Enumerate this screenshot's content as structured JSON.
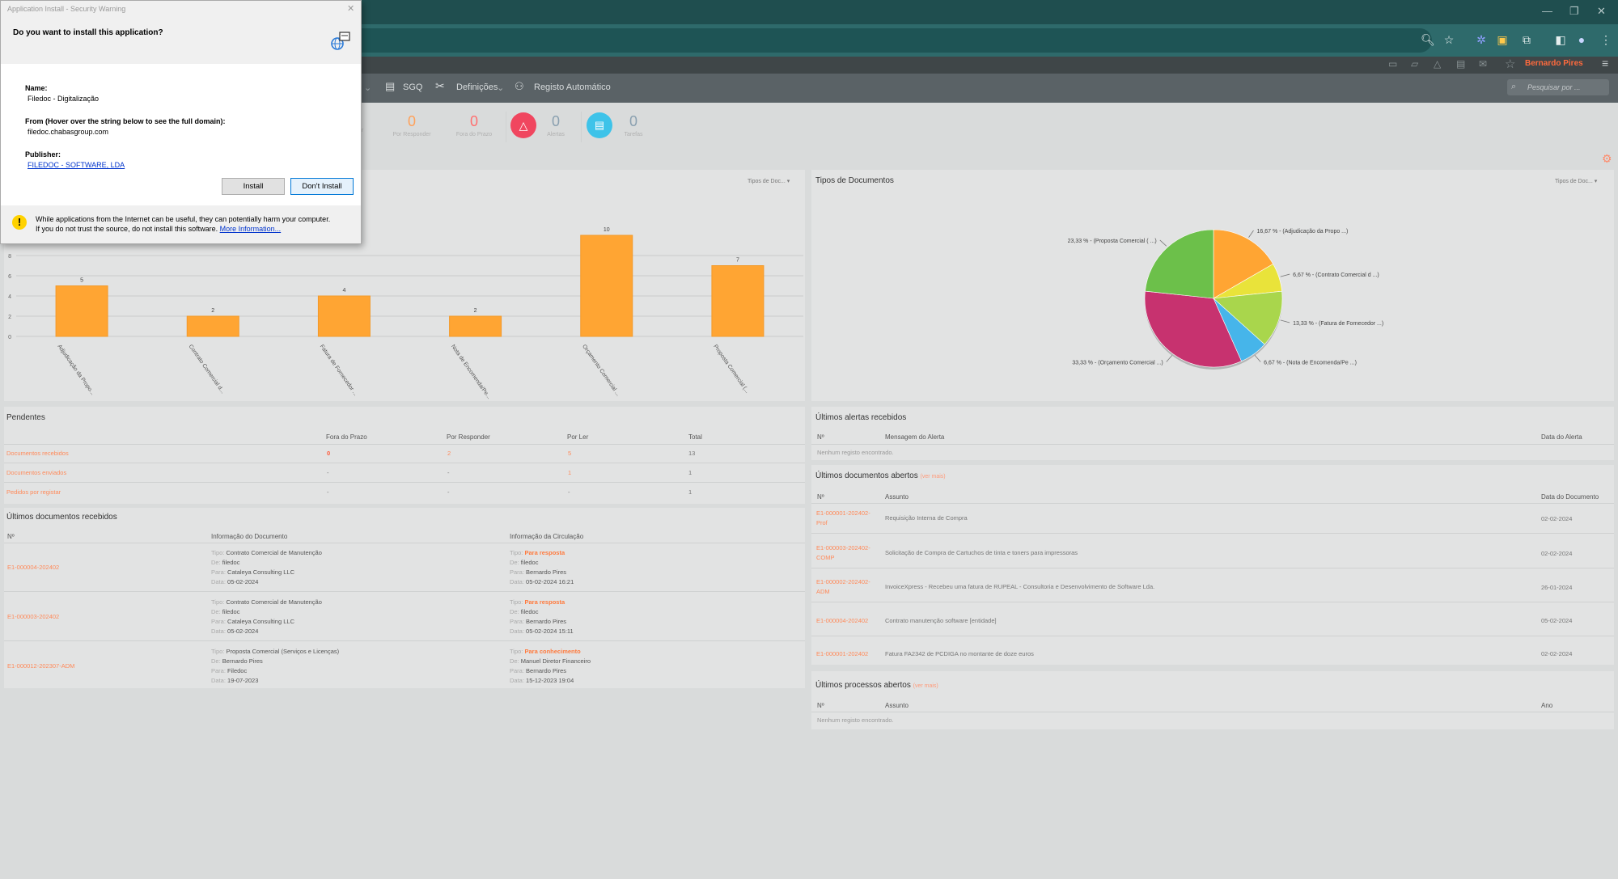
{
  "window": {
    "minimize": "—",
    "restore": "❐",
    "close": "✕"
  },
  "app": {
    "username": "Bernardo Pires",
    "search_placeholder": "Pesquisar por ..."
  },
  "nav": {
    "items": [
      "SGQ",
      "Definições",
      "Registo Automático"
    ]
  },
  "counters": [
    {
      "label": "Por Responder",
      "value": "0",
      "color": "#ffa15a"
    },
    {
      "label": "Fora do Prazo",
      "value": "0",
      "color": "#ff7070"
    },
    {
      "label": "Alertas",
      "value": "0",
      "color": "#8aa0b0"
    },
    {
      "label": "Tarefas",
      "value": "0",
      "color": "#8aa0b0"
    }
  ],
  "counters_partial": "er",
  "bar_panel": {
    "dropdown": "Tipos de Doc..."
  },
  "chart_data": [
    {
      "type": "bar",
      "title": "",
      "categories": [
        "Adjudicação da Propo...",
        "Contrato Comercial d...",
        "Fatura de Fornecedor ...",
        "Nota de Encomenda/Pe...",
        "Orçamento Comercial ...",
        "Proposta Comercial (..."
      ],
      "values": [
        5,
        2,
        4,
        2,
        10,
        7
      ],
      "ylim": [
        0,
        12
      ],
      "yticks": [
        0,
        2,
        4,
        6,
        8
      ],
      "color": "#ffa533"
    },
    {
      "type": "pie",
      "title": "Tipos de Documentos",
      "slices": [
        {
          "label": "16,67 % - (Adjudicação da Propo ...)",
          "value": 16.67,
          "color": "#ffa533"
        },
        {
          "label": "6,67 % - (Contrato Comercial d ...)",
          "value": 6.67,
          "color": "#e9e33a"
        },
        {
          "label": "13,33 % - (Fatura de Fornecedor ...)",
          "value": 13.33,
          "color": "#a9d64c"
        },
        {
          "label": "6,67 % - (Nota de Encomenda/Pe ...)",
          "value": 6.67,
          "color": "#46b5ea"
        },
        {
          "label": "33,33 % - (Orçamento Comercial ...)",
          "value": 33.33,
          "color": "#c7326f"
        },
        {
          "label": "23,33 % - (Proposta Comercial ( ...)",
          "value": 23.33,
          "color": "#6cc04a"
        }
      ],
      "dropdown": "Tipos de Doc..."
    }
  ],
  "pendentes": {
    "title": "Pendentes",
    "headers": [
      "Fora do Prazo",
      "Por Responder",
      "Por Ler",
      "Total"
    ],
    "rows": [
      {
        "name": "Documentos recebidos",
        "cells": [
          "0",
          "2",
          "5",
          "13"
        ]
      },
      {
        "name": "Documentos enviados",
        "cells": [
          "-",
          "-",
          "1",
          "1"
        ]
      },
      {
        "name": "Pedidos por registar",
        "cells": [
          "-",
          "-",
          "-",
          "1"
        ]
      }
    ]
  },
  "recebidos": {
    "title": "Últimos documentos recebidos",
    "headers": [
      "Nº",
      "Informação do Documento",
      "Informação da Circulação"
    ],
    "k_tipo": "Tipo:",
    "k_de": "De:",
    "k_para": "Para:",
    "k_data": "Data:",
    "rows": [
      {
        "num": "E1-000004-202402",
        "doc": [
          "Contrato Comercial de Manutenção",
          "filedoc",
          "Cataleya Consulting LLC",
          "05-02-2024"
        ],
        "circ": [
          "Para resposta",
          "filedoc",
          "Bernardo Pires",
          "05-02-2024 16:21"
        ]
      },
      {
        "num": "E1-000003-202402",
        "doc": [
          "Contrato Comercial de Manutenção",
          "filedoc",
          "Cataleya Consulting LLC",
          "05-02-2024"
        ],
        "circ": [
          "Para resposta",
          "filedoc",
          "Bernardo Pires",
          "05-02-2024 15:11"
        ]
      },
      {
        "num": "E1-000012-202307-ADM",
        "doc": [
          "Proposta Comercial (Serviços e Licenças)",
          "Bernardo Pires",
          "Filedoc",
          "19-07-2023"
        ],
        "circ": [
          "Para conhecimento",
          "Manuel Diretor Financeiro",
          "Bernardo Pires",
          "15-12-2023 19:04"
        ]
      }
    ]
  },
  "alertas": {
    "title": "Últimos alertas recebidos",
    "headers": [
      "Nº",
      "Mensagem do Alerta",
      "Data do Alerta"
    ],
    "empty": "Nenhum registo encontrado."
  },
  "abertos": {
    "title": "Últimos documentos abertos",
    "more": "(ver mais)",
    "headers": [
      "Nº",
      "Assunto",
      "Data do Documento"
    ],
    "rows": [
      {
        "num": [
          "E1-000001-202402-",
          "Prof"
        ],
        "subject": "Requisição Interna de Compra",
        "date": "02-02-2024"
      },
      {
        "num": [
          "E1-000003-202402-",
          "COMP"
        ],
        "subject": "Solicitação de Compra de Cartuchos de tinta e toners para impressoras",
        "date": "02-02-2024"
      },
      {
        "num": [
          "E1-000002-202402-",
          "ADM"
        ],
        "subject": "InvoiceXpress - Recebeu uma fatura de RUPEAL - Consultoria e Desenvolvimento de Software Lda.",
        "date": "26-01-2024"
      },
      {
        "num": [
          "E1-000004-202402",
          ""
        ],
        "subject": "Contrato manutenção software [entidade]",
        "date": "05-02-2024"
      },
      {
        "num": [
          "E1-000001-202402",
          ""
        ],
        "subject": "Fatura FA2342 de PCDIGA no montante de doze euros",
        "date": "02-02-2024"
      }
    ]
  },
  "processos": {
    "title": "Últimos processos abertos",
    "more": "(ver mais)",
    "headers": [
      "Nº",
      "Assunto",
      "Ano"
    ],
    "empty": "Nenhum registo encontrado."
  },
  "dialog": {
    "title": "Application Install - Security Warning",
    "question": "Do you want to install this application?",
    "name_label": "Name:",
    "name_value": "Filedoc - Digitalização",
    "from_label": "From (Hover over the string below to see the full domain):",
    "from_value": "filedoc.chabasgroup.com",
    "publisher_label": "Publisher:",
    "publisher_value": "FILEDOC - SOFTWARE, LDA",
    "install": "Install",
    "dont_install": "Don't Install",
    "warn_icon": "!",
    "warning_line1": "While applications from the Internet can be useful, they can potentially harm your computer.",
    "warning_line2": "If you do not trust the source, do not install this software.",
    "more_info": "More Information..."
  }
}
